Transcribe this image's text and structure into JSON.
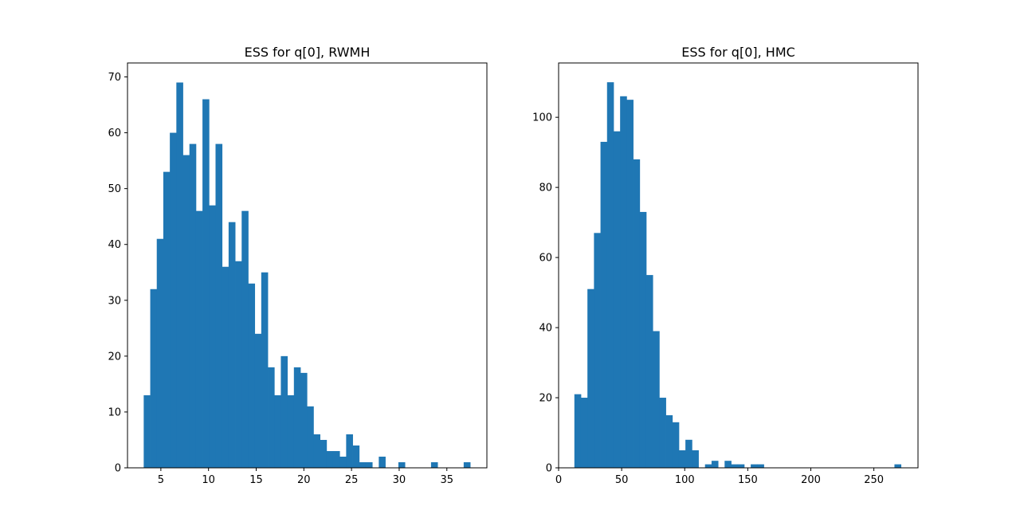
{
  "chart_data": [
    {
      "type": "bar",
      "title": "ESS for q[0], RWMH",
      "xlabel": "",
      "ylabel": "",
      "xlim": [
        1.5,
        39.2
      ],
      "ylim": [
        0,
        72.5
      ],
      "xticks": [
        5,
        10,
        15,
        20,
        25,
        30,
        35
      ],
      "yticks": [
        0,
        10,
        20,
        30,
        40,
        50,
        60,
        70
      ],
      "bin_start": 3.2,
      "bin_width": 0.685,
      "values": [
        13,
        32,
        41,
        53,
        60,
        69,
        56,
        58,
        46,
        66,
        47,
        58,
        36,
        44,
        37,
        46,
        33,
        24,
        35,
        18,
        13,
        20,
        13,
        18,
        17,
        11,
        6,
        5,
        3,
        3,
        2,
        6,
        4,
        1,
        1,
        0,
        2,
        0,
        0,
        1,
        0,
        0,
        0,
        0,
        1,
        0,
        0,
        0,
        0,
        1
      ],
      "color": "#1f77b4",
      "grid": false
    },
    {
      "type": "bar",
      "title": "ESS for q[0], HMC",
      "xlabel": "",
      "ylabel": "",
      "xlim": [
        0,
        285
      ],
      "ylim": [
        0,
        115.5
      ],
      "xticks": [
        0,
        50,
        100,
        150,
        200,
        250
      ],
      "yticks": [
        0,
        20,
        40,
        60,
        80,
        100
      ],
      "bin_start": 12.5,
      "bin_width": 5.18,
      "values": [
        21,
        20,
        51,
        67,
        93,
        110,
        96,
        106,
        105,
        88,
        73,
        55,
        39,
        20,
        15,
        13,
        5,
        8,
        5,
        0,
        1,
        2,
        0,
        2,
        1,
        1,
        0,
        1,
        1,
        0,
        0,
        0,
        0,
        0,
        0,
        0,
        0,
        0,
        0,
        0,
        0,
        0,
        0,
        0,
        0,
        0,
        0,
        0,
        0,
        1
      ],
      "color": "#1f77b4",
      "grid": false
    }
  ]
}
